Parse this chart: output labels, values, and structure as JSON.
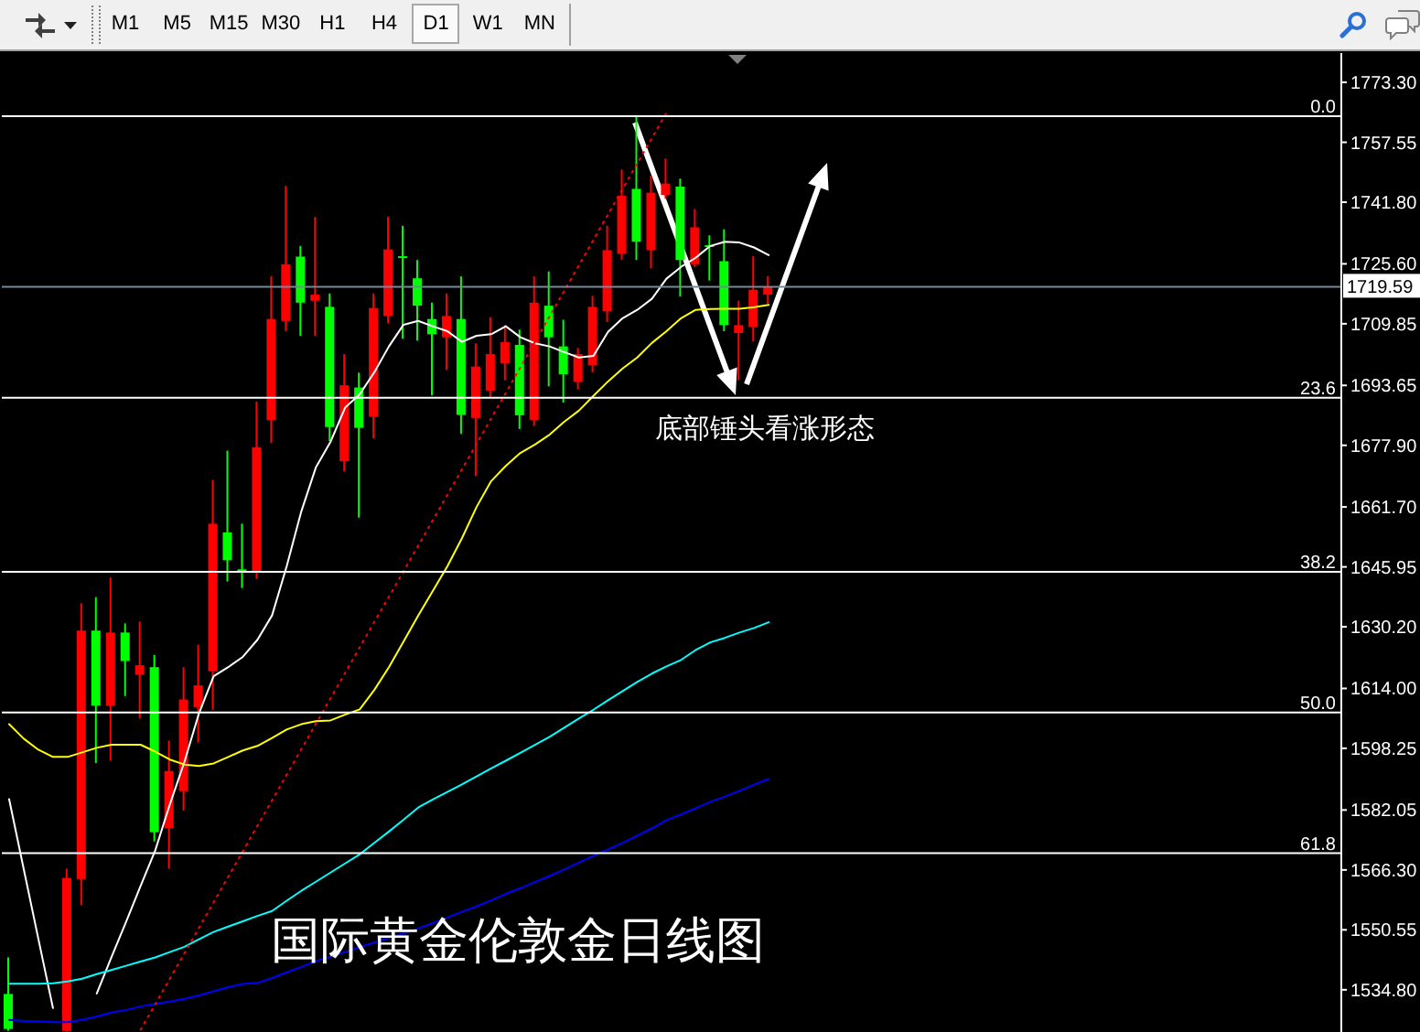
{
  "chart_data": {
    "type": "candlestick",
    "title": "国际黄金伦敦金日线图",
    "categories": [
      null,
      null,
      null,
      null,
      null,
      null,
      null,
      null,
      null,
      null,
      null,
      null,
      null,
      null,
      null,
      null,
      null,
      null,
      null,
      null,
      null,
      null,
      null,
      null,
      null,
      null,
      null,
      null,
      null,
      null,
      null,
      null,
      null,
      null,
      null,
      null,
      null,
      null,
      null,
      null,
      null,
      null,
      null,
      null,
      null,
      null,
      null,
      null,
      null,
      null,
      null,
      null,
      null
    ],
    "ohlc": [
      [
        1533.7,
        1543.3,
        1524.0,
        1524.5
      ],
      null,
      null,
      null,
      [
        1524.0,
        1566.6,
        1523.8,
        1564.2
      ],
      [
        1563.9,
        1636.4,
        1557.0,
        1629.2
      ],
      [
        1629.2,
        1638.0,
        1594.4,
        1609.5
      ],
      [
        1609.5,
        1643.2,
        1595.0,
        1628.7
      ],
      [
        1628.7,
        1631.1,
        1612.0,
        1621.2
      ],
      [
        1617.6,
        1631.6,
        1606.2,
        1620.1
      ],
      [
        1619.6,
        1622.8,
        1573.8,
        1576.2
      ],
      [
        1577.3,
        1600.3,
        1566.6,
        1592.3
      ],
      [
        1587.0,
        1619.6,
        1581.9,
        1611.1
      ],
      [
        1609.1,
        1625.5,
        1599.8,
        1614.8
      ],
      [
        1618.5,
        1668.8,
        1608.4,
        1657.3
      ],
      [
        1655.0,
        1676.5,
        1642.1,
        1647.7
      ],
      [
        1645.3,
        1657.3,
        1640.4,
        1644.8
      ],
      [
        1644.5,
        1689.4,
        1642.8,
        1677.4
      ],
      [
        1684.6,
        1722.3,
        1678.5,
        1711.1
      ],
      [
        1710.6,
        1746.1,
        1707.9,
        1725.5
      ],
      [
        1727.5,
        1730.3,
        1706.7,
        1715.4
      ],
      [
        1715.9,
        1737.9,
        1706.7,
        1717.5
      ],
      [
        1714.3,
        1717.8,
        1679.0,
        1682.7
      ],
      [
        1673.7,
        1701.9,
        1671.0,
        1693.7
      ],
      [
        1693.1,
        1697.0,
        1658.9,
        1682.5
      ],
      [
        1685.4,
        1717.8,
        1679.8,
        1714.0
      ],
      [
        1711.9,
        1738.0,
        1710.0,
        1729.4
      ],
      [
        1727.6,
        1735.6,
        1705.9,
        1727.2
      ],
      [
        1721.8,
        1726.6,
        1705.4,
        1714.6
      ],
      [
        1711.1,
        1715.4,
        1691.0,
        1707.1
      ],
      [
        1706.3,
        1717.8,
        1697.7,
        1711.9
      ],
      [
        1711.1,
        1722.3,
        1680.9,
        1685.9
      ],
      [
        1685.1,
        1704.7,
        1669.8,
        1698.6
      ],
      [
        1692.3,
        1711.6,
        1690.2,
        1701.9
      ],
      [
        1699.5,
        1709.5,
        1695.0,
        1705.0
      ],
      [
        1704.3,
        1708.3,
        1682.2,
        1685.8
      ],
      [
        1684.6,
        1722.3,
        1683.0,
        1715.4
      ],
      [
        1714.6,
        1723.6,
        1693.4,
        1706.3
      ],
      [
        1703.9,
        1710.9,
        1689.1,
        1696.6
      ],
      [
        1694.6,
        1703.5,
        1692.6,
        1701.9
      ],
      [
        1699.0,
        1717.2,
        1697.1,
        1714.3
      ],
      [
        1713.1,
        1735.6,
        1710.3,
        1729.2
      ],
      [
        1728.3,
        1750.4,
        1726.6,
        1743.5
      ],
      [
        1745.3,
        1764.5,
        1726.6,
        1731.4
      ],
      [
        1729.2,
        1748.8,
        1724.4,
        1744.3
      ],
      [
        1743.7,
        1753.3,
        1742.7,
        1746.7
      ],
      [
        1745.9,
        1748.0,
        1717.0,
        1726.6
      ],
      [
        1725.5,
        1740.0,
        1724.7,
        1735.2
      ],
      [
        1730.5,
        1733.1,
        1721.2,
        1730.2
      ],
      [
        1726.3,
        1734.7,
        1707.9,
        1709.5
      ],
      [
        1707.4,
        1715.9,
        1695.0,
        1709.5
      ],
      [
        1709.0,
        1727.6,
        1705.2,
        1718.8
      ],
      [
        1717.5,
        1722.3,
        1715.1,
        1719.59
      ]
    ],
    "colors": [
      "#00ff00",
      null,
      null,
      null,
      "#ff0000",
      "#ff0000",
      "#00ff00",
      "#ff0000",
      "#00ff00",
      "#ff0000",
      "#00ff00",
      "#ff0000",
      "#ff0000",
      "#ff0000",
      "#ff0000",
      "#00ff00",
      "#00ff00",
      "#ff0000",
      "#ff0000",
      "#ff0000",
      "#00ff00",
      "#ff0000",
      "#00ff00",
      "#ff0000",
      "#00ff00",
      "#ff0000",
      "#ff0000",
      "#00ff00",
      "#00ff00",
      "#00ff00",
      "#ff0000",
      "#00ff00",
      "#ff0000",
      "#ff0000",
      "#ff0000",
      "#00ff00",
      "#ff0000",
      "#00ff00",
      "#00ff00",
      "#ff0000",
      "#ff0000",
      "#ff0000",
      "#ff0000",
      "#00ff00",
      "#ff0000",
      "#ff0000",
      "#00ff00",
      "#ff0000",
      "#00ff00",
      "#00ff00",
      "#ff0000",
      "#ff0000",
      "#ff0000"
    ],
    "series": [
      {
        "type": "line",
        "color": "#ffffff",
        "values": [
          1584.9,
          1566.5,
          1548.2,
          1530.0,
          null,
          null,
          1533.8,
          1543.3,
          1552.6,
          1562.1,
          1571.4,
          1583.5,
          1594.7,
          1607.5,
          1617.2,
          1619.6,
          1622.3,
          1626.8,
          1633.2,
          1646.1,
          1660.5,
          1672.1,
          1678.8,
          1687.8,
          1691.3,
          1697.1,
          1703.9,
          1709.6,
          1710.6,
          1709.2,
          1707.9,
          1705.1,
          1706.7,
          1707.1,
          1709.2,
          1706.3,
          1704.7,
          1703.9,
          1702.4,
          1701.0,
          1701.4,
          1707.7,
          1711.3,
          1713.5,
          1716.4,
          1721.7,
          1724.8,
          1727.2,
          1730.3,
          1731.4,
          1731.2,
          1729.9,
          1727.9
        ]
      },
      {
        "type": "line",
        "color": "#ffff00",
        "values": [
          1604.6,
          1600.8,
          1597.9,
          1596.0,
          1596.0,
          1597.2,
          1598.4,
          1599.2,
          1599.2,
          1599.2,
          1597.4,
          1595.3,
          1594.0,
          1593.6,
          1594.3,
          1596.0,
          1597.7,
          1598.9,
          1601.0,
          1603.2,
          1604.6,
          1605.4,
          1605.6,
          1607.1,
          1608.5,
          1613.6,
          1619.6,
          1626.3,
          1633.1,
          1639.6,
          1646.1,
          1653.5,
          1661.7,
          1668.5,
          1672.5,
          1675.9,
          1678.1,
          1680.7,
          1684.1,
          1687.0,
          1690.9,
          1694.7,
          1698.1,
          1701.0,
          1704.8,
          1707.9,
          1711.3,
          1713.5,
          1713.7,
          1713.8,
          1713.8,
          1714.2,
          1714.8
        ]
      },
      {
        "type": "line",
        "color": "#00ffff",
        "values": [
          1536.4,
          1536.4,
          1536.4,
          1536.5,
          1537.0,
          1537.7,
          1538.9,
          1540.0,
          1541.1,
          1542.2,
          1543.3,
          1544.7,
          1546.1,
          1548.1,
          1550.0,
          1551.4,
          1552.8,
          1554.2,
          1555.5,
          1558.2,
          1560.8,
          1563.2,
          1565.6,
          1568.0,
          1570.4,
          1573.4,
          1576.4,
          1579.5,
          1582.7,
          1584.8,
          1586.8,
          1588.8,
          1590.9,
          1593.0,
          1595.0,
          1597.1,
          1599.2,
          1601.3,
          1603.7,
          1606.1,
          1608.4,
          1610.9,
          1613.3,
          1615.7,
          1617.9,
          1619.8,
          1621.5,
          1624.1,
          1626.1,
          1627.3,
          1628.7,
          1629.9,
          1631.4
        ]
      },
      {
        "type": "line",
        "color": "#0000ff",
        "values": [
          1526.9,
          1526.6,
          1526.5,
          1526.3,
          1526.3,
          1526.9,
          1527.8,
          1528.8,
          1529.5,
          1530.4,
          1531.1,
          1531.7,
          1532.4,
          1533.3,
          1534.4,
          1535.5,
          1536.3,
          1536.6,
          1537.9,
          1539.4,
          1540.8,
          1542.3,
          1543.5,
          1544.7,
          1546.0,
          1547.2,
          1548.4,
          1549.6,
          1550.9,
          1552.3,
          1553.8,
          1555.3,
          1556.7,
          1558.3,
          1560.0,
          1561.5,
          1563.1,
          1564.7,
          1566.4,
          1568.2,
          1570.0,
          1571.7,
          1573.4,
          1575.3,
          1577.2,
          1579.4,
          1580.9,
          1582.5,
          1584.2,
          1585.6,
          1587.1,
          1588.7,
          1590.2
        ]
      },
      {
        "type": "line",
        "color": "#ff0000",
        "line_style": "dotted",
        "values": [
          null,
          null,
          null,
          null,
          null,
          null,
          null,
          null,
          null,
          1524.3,
          1531.0,
          1537.7,
          1544.4,
          1551.1,
          1557.8,
          1564.5,
          1571.2,
          1577.9,
          1584.6,
          1591.3,
          1598.0,
          1604.7,
          1611.4,
          1618.1,
          1624.8,
          1631.5,
          1638.1,
          1644.8,
          1651.5,
          1658.2,
          1664.9,
          1671.6,
          1678.3,
          1685.0,
          1691.7,
          1698.4,
          1705.1,
          1711.8,
          1718.5,
          1725.2,
          1731.9,
          1738.6,
          1745.3,
          1752.0,
          1758.6,
          1765.3,
          null,
          null,
          null,
          null,
          null,
          null,
          null
        ]
      }
    ],
    "ylim": [
      1523.7,
      1781.0
    ],
    "yticks": [
      {
        "value": 1773.3,
        "label": "1773.30"
      },
      {
        "value": 1757.55,
        "label": "1757.55"
      },
      {
        "value": 1741.8,
        "label": "1741.80"
      },
      {
        "value": 1725.6,
        "label": "1725.60"
      },
      {
        "value": 1709.85,
        "label": "1709.85"
      },
      {
        "value": 1693.65,
        "label": "1693.65"
      },
      {
        "value": 1677.9,
        "label": "1677.90"
      },
      {
        "value": 1661.7,
        "label": "1661.70"
      },
      {
        "value": 1645.95,
        "label": "1645.95"
      },
      {
        "value": 1630.2,
        "label": "1630.20"
      },
      {
        "value": 1614.0,
        "label": "1614.00"
      },
      {
        "value": 1598.25,
        "label": "1598.25"
      },
      {
        "value": 1582.05,
        "label": "1582.05"
      },
      {
        "value": 1566.3,
        "label": "1566.30"
      },
      {
        "value": 1550.55,
        "label": "1550.55"
      },
      {
        "value": 1534.8,
        "label": "1534.80"
      }
    ],
    "y2lim": [
      76.8,
      -5.3
    ],
    "y2ticks": [
      {
        "value": 0,
        "label": "0.0"
      },
      23.6,
      38.2,
      {
        "value": 50,
        "label": "50.0"
      },
      61.8
    ],
    "tick_labels": "y",
    "ref_lines": [
      {
        "axis": "y2",
        "value": 0,
        "color": "#ffffff"
      },
      {
        "axis": "y2",
        "value": 23.6,
        "color": "#ffffff"
      },
      {
        "axis": "y2",
        "value": 38.2,
        "color": "#ffffff"
      },
      {
        "axis": "y2",
        "value": 50,
        "color": "#ffffff"
      },
      {
        "axis": "y2",
        "value": 61.8,
        "color": "#ffffff"
      },
      {
        "axis": "y",
        "value": 1719.59,
        "label": "1719.59",
        "color": "#778899"
      }
    ],
    "annotations": [
      "底部锤头看涨形态",
      "M1",
      "M5",
      "M15",
      "M30",
      "H1",
      "H4",
      "D1",
      "W1",
      "MN"
    ]
  }
}
